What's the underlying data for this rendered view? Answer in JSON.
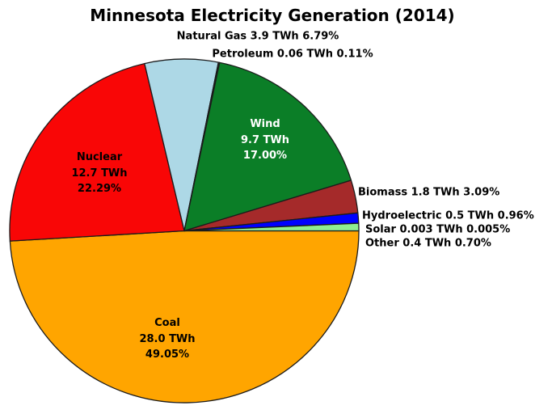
{
  "page": {
    "background_color": "#ffffff"
  },
  "chart_data": {
    "type": "pie",
    "title": "Minnesota Electricity Generation (2014)",
    "unit": "TWh",
    "start_angle_deg": 0,
    "direction": "clockwise",
    "legend_position": "none",
    "outline_color": "#1b1b1b",
    "slices": [
      {
        "id": "coal",
        "name": "Coal",
        "value_twh": 28.0,
        "value_text": "28.0 TWh",
        "percent": 49.05,
        "percent_text": "49.05%",
        "color": "#FFA500",
        "label_placement": "inside",
        "label_color": "#000000"
      },
      {
        "id": "nuclear",
        "name": "Nuclear",
        "value_twh": 12.7,
        "value_text": "12.7 TWh",
        "percent": 22.29,
        "percent_text": "22.29%",
        "color": "#F90606",
        "label_placement": "inside",
        "label_color": "#000000"
      },
      {
        "id": "natural-gas",
        "name": "Natural Gas",
        "value_twh": 3.9,
        "value_text": "3.9 TWh",
        "percent": 6.79,
        "percent_text": "6.79%",
        "color": "#ADD8E6",
        "label_placement": "outside",
        "label_color": "#000000"
      },
      {
        "id": "petroleum",
        "name": "Petroleum",
        "value_twh": 0.06,
        "value_text": "0.06 TWh",
        "percent": 0.11,
        "percent_text": "0.11%",
        "color": "#333333",
        "label_placement": "outside",
        "label_color": "#000000"
      },
      {
        "id": "wind",
        "name": "Wind",
        "value_twh": 9.7,
        "value_text": "9.7 TWh",
        "percent": 17.0,
        "percent_text": "17.00%",
        "color": "#0B7E27",
        "label_placement": "inside",
        "label_color": "#FFFFFF"
      },
      {
        "id": "biomass",
        "name": "Biomass",
        "value_twh": 1.8,
        "value_text": "1.8 TWh",
        "percent": 3.09,
        "percent_text": "3.09%",
        "color": "#A52A2A",
        "label_placement": "outside",
        "label_color": "#000000"
      },
      {
        "id": "hydroelectric",
        "name": "Hydroelectric",
        "value_twh": 0.5,
        "value_text": "0.5 TWh",
        "percent": 0.96,
        "percent_text": "0.96%",
        "color": "#0000FF",
        "label_placement": "outside",
        "label_color": "#000000"
      },
      {
        "id": "solar",
        "name": "Solar",
        "value_twh": 0.003,
        "value_text": "0.003 TWh",
        "percent": 0.005,
        "percent_text": "0.005%",
        "color": "#E8D44D",
        "label_placement": "outside",
        "label_color": "#000000"
      },
      {
        "id": "other",
        "name": "Other",
        "value_twh": 0.4,
        "value_text": "0.4 TWh",
        "percent": 0.7,
        "percent_text": "0.70%",
        "color": "#90EE90",
        "label_placement": "outside",
        "label_color": "#000000"
      }
    ]
  }
}
